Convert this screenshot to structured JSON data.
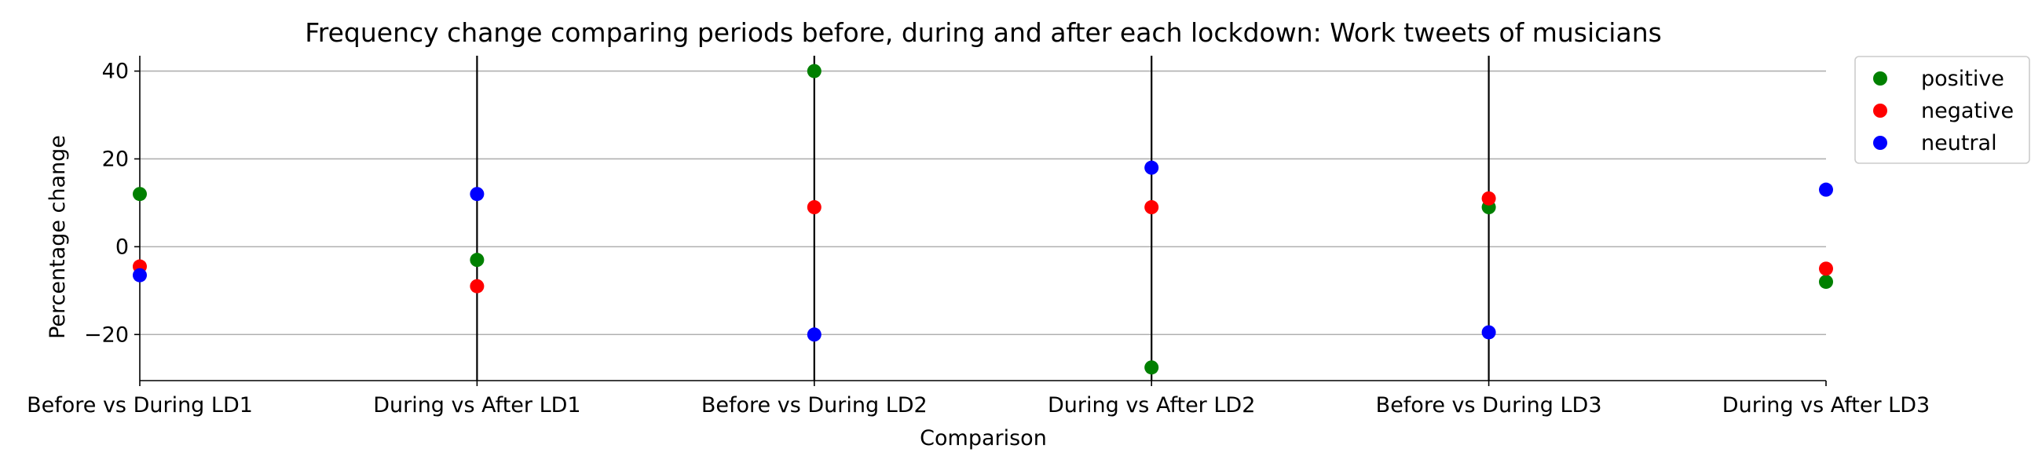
{
  "chart_data": {
    "type": "scatter",
    "title": "Frequency change comparing periods before, during and after each lockdown: Work tweets of musicians",
    "xlabel": "Comparison",
    "ylabel": "Percentage change",
    "categories": [
      "Before vs During LD1",
      "During vs After LD1",
      "Before vs During LD2",
      "During vs After LD2",
      "Before vs During LD3",
      "During vs After LD3"
    ],
    "ylim": [
      -30.5,
      43.5
    ],
    "yticks": [
      -20,
      0,
      20,
      40
    ],
    "ytick_labels": [
      "−20",
      "0",
      "20",
      "40"
    ],
    "grid": "horizontal",
    "legend_position": "outside top-right",
    "series": [
      {
        "name": "positive",
        "color": "#008000",
        "values": [
          12,
          -3,
          40,
          -27.5,
          9,
          -8
        ]
      },
      {
        "name": "negative",
        "color": "#ff0000",
        "values": [
          -4.5,
          -9,
          9,
          9,
          11,
          -5
        ]
      },
      {
        "name": "neutral",
        "color": "#0000ff",
        "values": [
          -6.5,
          12,
          -20,
          18,
          -19.5,
          13
        ]
      }
    ],
    "vertical_lines_at": [
      1,
      2,
      3,
      4
    ]
  }
}
